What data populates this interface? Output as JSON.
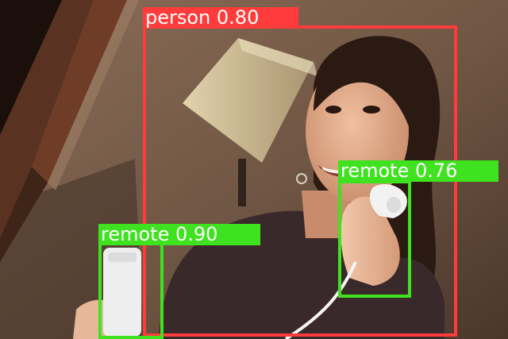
{
  "image": {
    "description_icon": "photo-icon",
    "palette": {
      "wall": "#7a5f4c",
      "wall_dark": "#4e3a2e",
      "lamp_shade": "#c9b58f",
      "window_frame": "#5a3222",
      "skin": "#e0aa8a",
      "hair": "#2c1a12",
      "top": "#3b2a2c",
      "remote": "#ececec"
    }
  },
  "detections": [
    {
      "id": "person",
      "class_name": "person",
      "score": "0.80",
      "label": "person 0.80",
      "color": "#ff3b3b"
    },
    {
      "id": "remote-left",
      "class_name": "remote",
      "score": "0.90",
      "label": "remote 0.90",
      "color": "#3ee21e"
    },
    {
      "id": "remote-right",
      "class_name": "remote",
      "score": "0.76",
      "label": "remote 0.76",
      "color": "#3ee21e"
    }
  ]
}
